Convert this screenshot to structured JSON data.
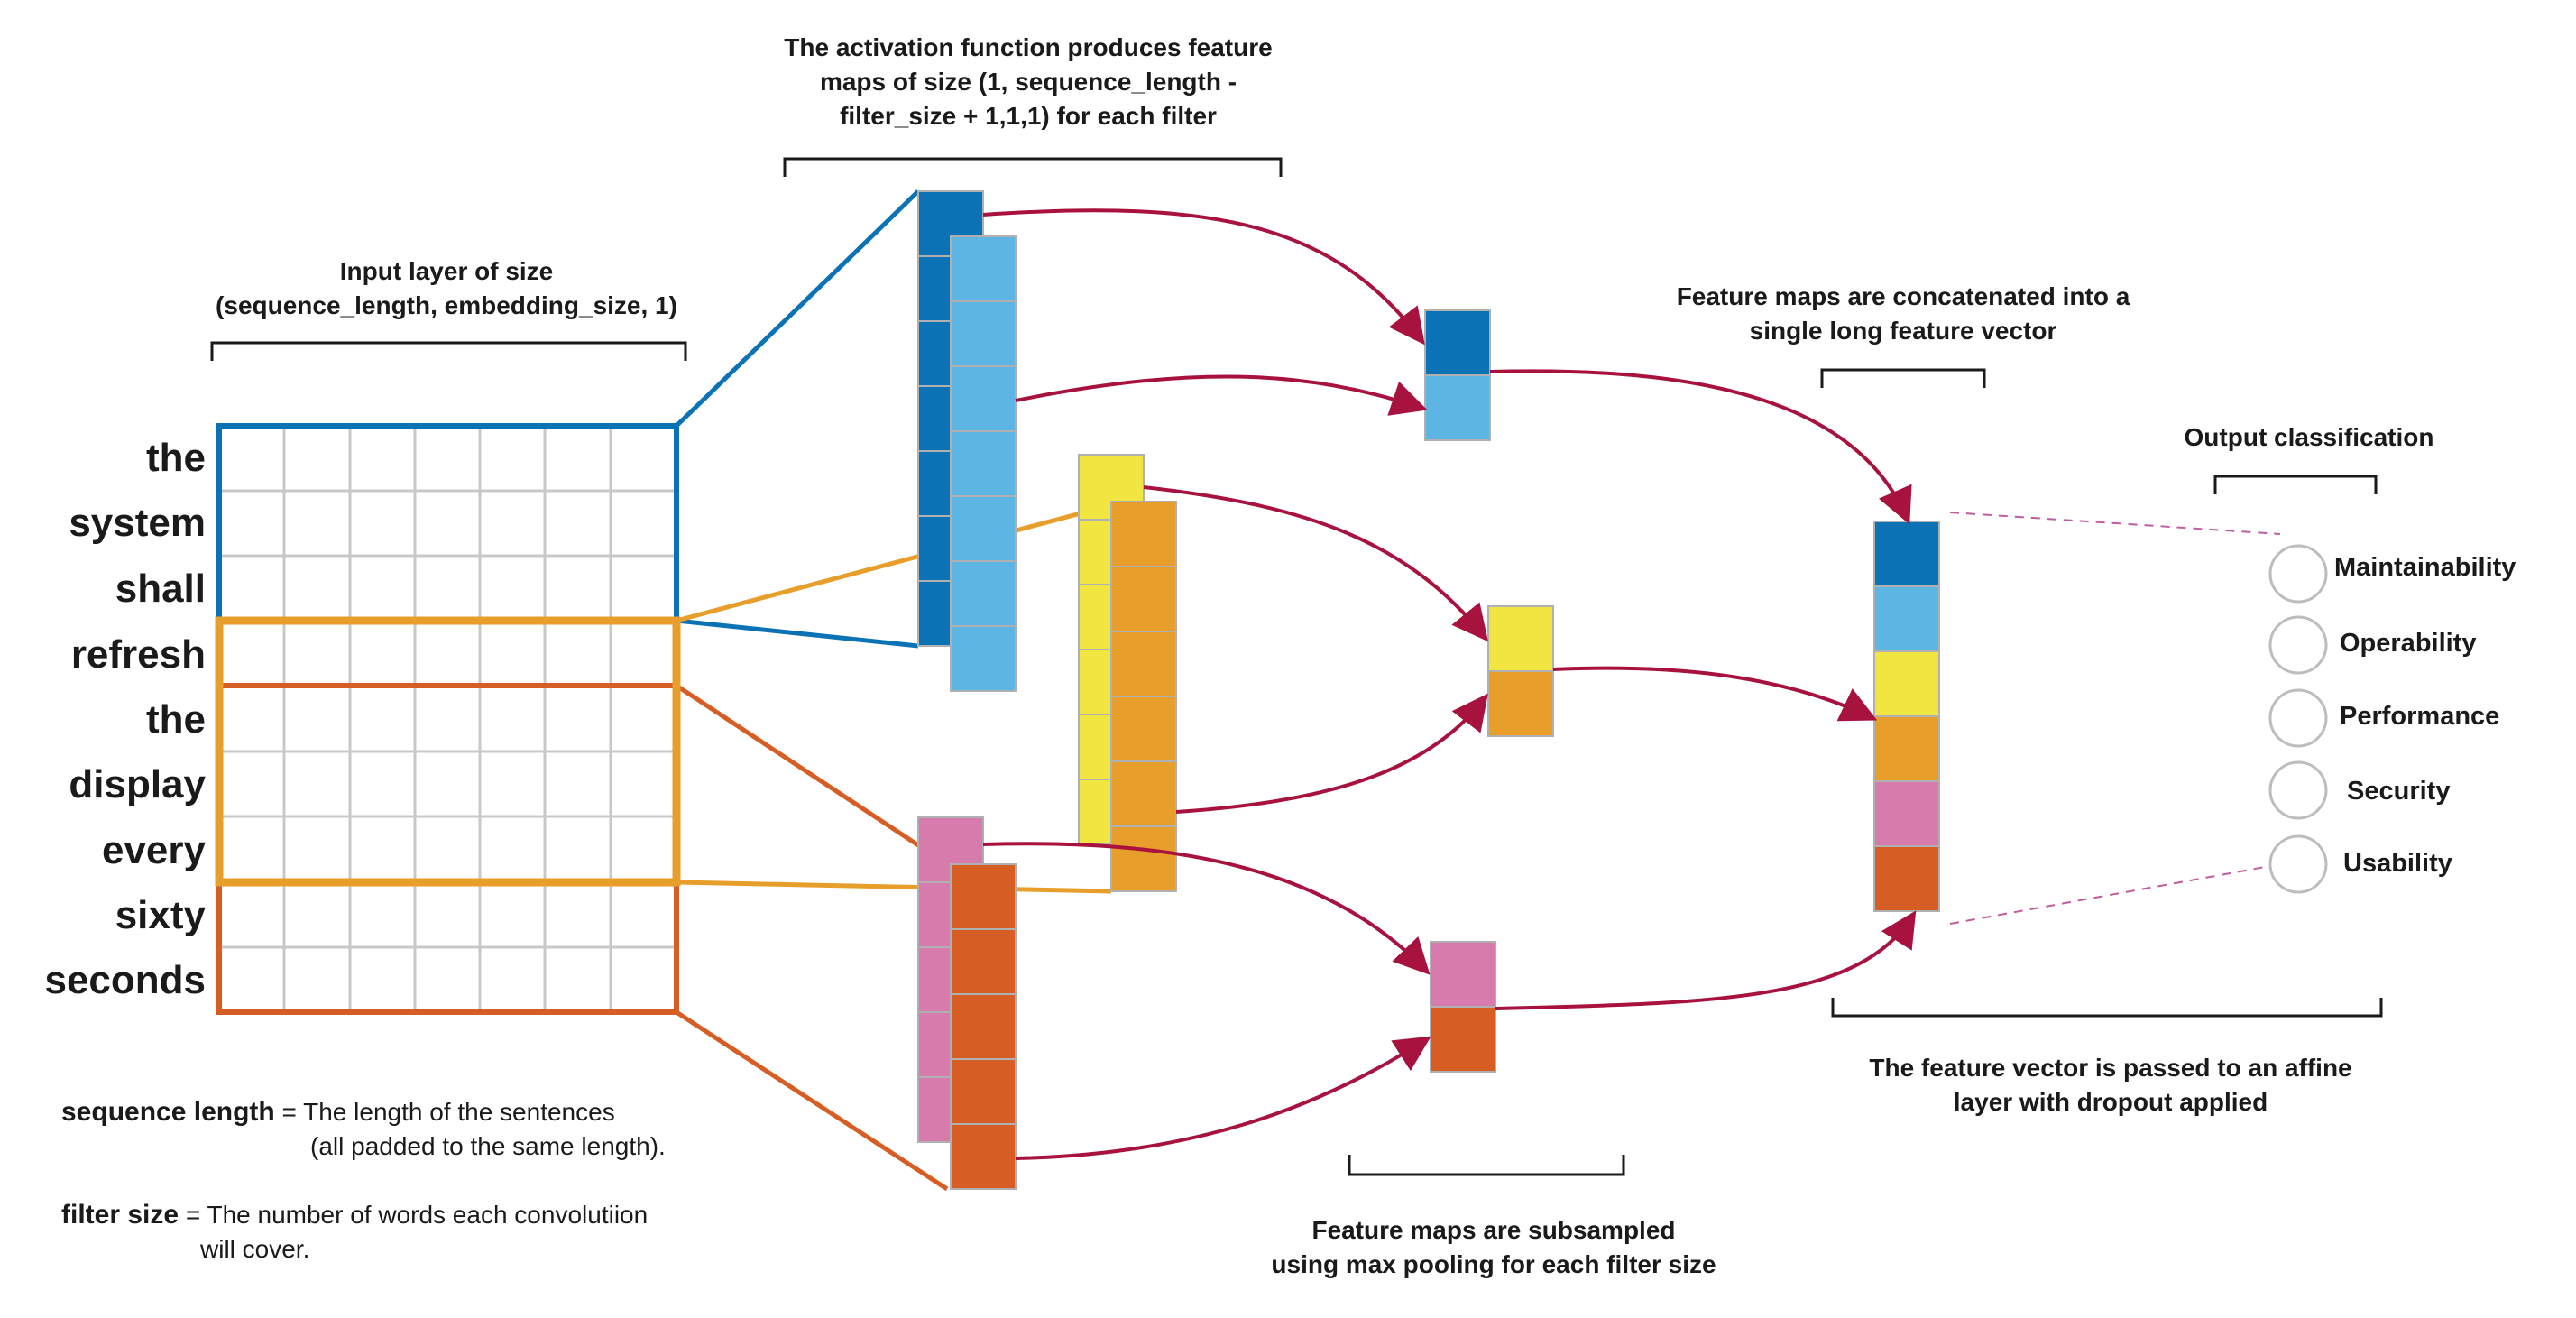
{
  "captions": {
    "activation": [
      "The activation function produces feature",
      "maps of size (1, sequence_length -",
      "filter_size + 1,1,1) for each filter"
    ],
    "input": [
      "Input layer of size",
      "(sequence_length, embedding_size, 1)"
    ],
    "concat": [
      "Feature maps are concatenated into a",
      "single long feature vector"
    ],
    "output": [
      "Output classification"
    ],
    "affine": [
      "The feature vector is passed to an affine",
      "layer with dropout applied"
    ],
    "pooling": [
      "Feature maps are subsampled",
      "using max pooling for each filter size"
    ]
  },
  "words": [
    "the",
    "system",
    "shall",
    "refresh",
    "the",
    "display",
    "every",
    "sixty",
    "seconds"
  ],
  "classes": [
    "Maintainability",
    "Operability",
    "Performance",
    "Security",
    "Usability"
  ],
  "legend": {
    "seq_term": "sequence length",
    "seq_def": [
      " = The length of the sentences",
      "(all padded to the same length)."
    ],
    "filter_term": "filter size",
    "filter_def": [
      " = The number of words each convolutiion",
      "will cover."
    ]
  },
  "colors": {
    "blue_dark": "#0A72B5",
    "blue_light": "#5DB5E3",
    "yellow": "#F1E541",
    "orange": "#E89E2A",
    "pink": "#D77BAC",
    "red_orange": "#D65E25",
    "arrow": "#A8123E",
    "grid": "#C8C8C8",
    "dashed": "#C05BA0"
  }
}
